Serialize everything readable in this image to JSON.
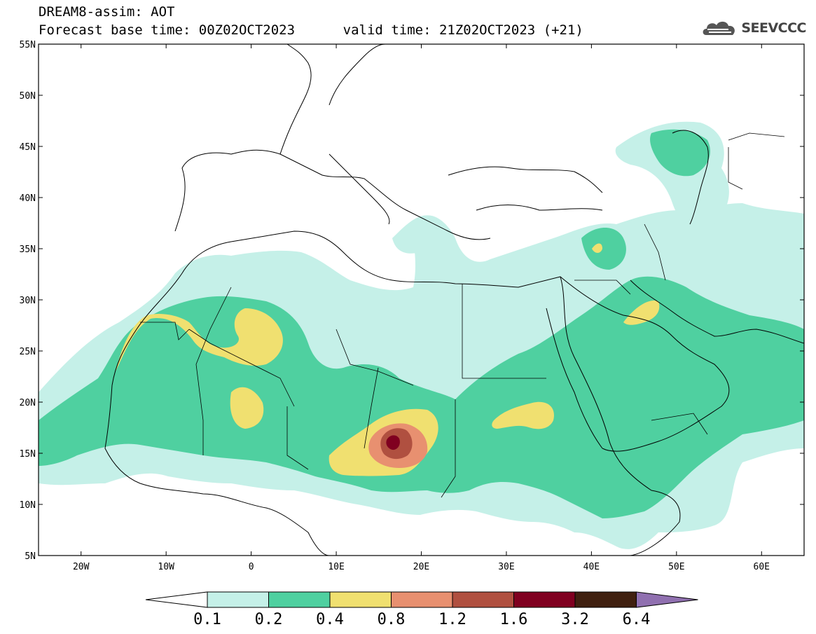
{
  "header": {
    "line1": "DREAM8-assim: AOT",
    "line2": "Forecast base time: 00Z02OCT2023      valid time: 21Z02OCT2023 (+21)",
    "logo_text": "SEEVCCC",
    "logo_icon": "cloud-logo-icon"
  },
  "map": {
    "lon_range": [
      -25,
      65
    ],
    "lat_range": [
      5,
      55
    ],
    "lat_ticks": [
      "55N",
      "50N",
      "45N",
      "40N",
      "35N",
      "30N",
      "25N",
      "20N",
      "15N",
      "10N",
      "5N"
    ],
    "lon_ticks": [
      "20W",
      "10W",
      "0",
      "10E",
      "20E",
      "30E",
      "40E",
      "50E",
      "60E"
    ]
  },
  "colorbar": {
    "labels": [
      "0.1",
      "0.2",
      "0.4",
      "0.8",
      "1.2",
      "1.6",
      "3.2",
      "6.4"
    ],
    "colors": [
      "#ffffff",
      "#c5f0e8",
      "#4fd0a0",
      "#f0e070",
      "#e89070",
      "#b05040",
      "#800020",
      "#402010",
      "#9070b0"
    ]
  }
}
